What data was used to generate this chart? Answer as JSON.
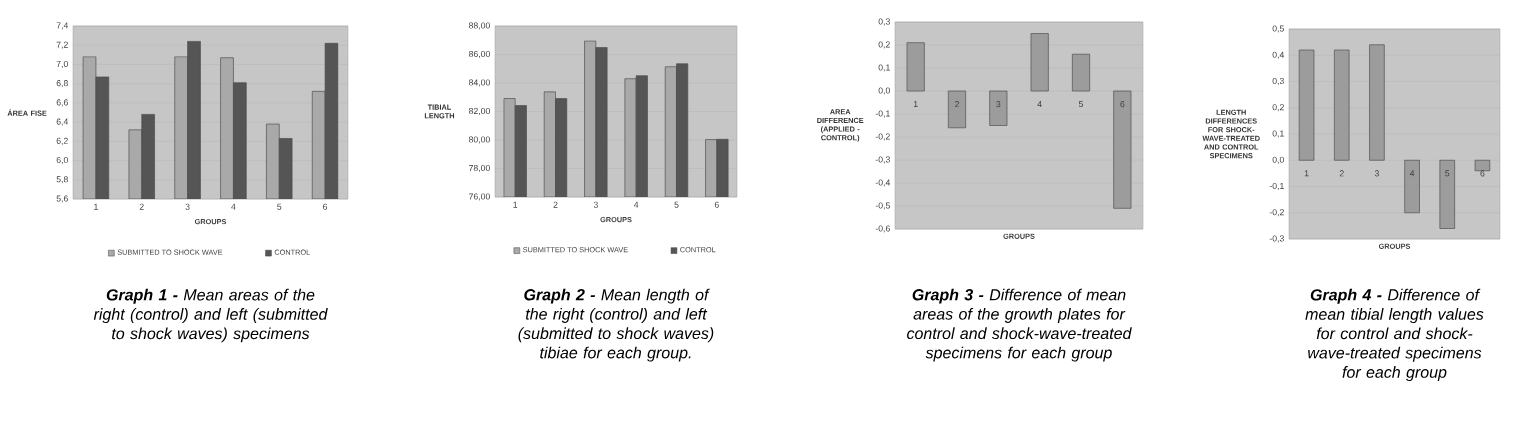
{
  "chart_data": [
    {
      "type": "bar",
      "title": "**Graph 1 -** Mean areas of the right (control) and left (submitted to shock waves) specimens",
      "xlabel": "GROUPS",
      "ylabel": "ÁREA FISE",
      "categories": [
        "1",
        "2",
        "3",
        "4",
        "5",
        "6"
      ],
      "series": [
        {
          "name": "SUBMITTED TO SHOCK WAVE",
          "color": "#a9a9a9",
          "values": [
            7.08,
            6.32,
            7.08,
            7.07,
            6.38,
            6.72
          ]
        },
        {
          "name": "CONTROL",
          "color": "#555555",
          "values": [
            6.87,
            6.48,
            7.24,
            6.81,
            6.23,
            7.22
          ]
        }
      ],
      "ylim": [
        5.6,
        7.4
      ],
      "yticks": [
        {
          "value": 5.6,
          "label": "5,6"
        },
        {
          "value": 5.8,
          "label": "5,8"
        },
        {
          "value": 6.0,
          "label": "6,0"
        },
        {
          "value": 6.2,
          "label": "6,2"
        },
        {
          "value": 6.4,
          "label": "6,4"
        },
        {
          "value": 6.6,
          "label": "6,6"
        },
        {
          "value": 6.8,
          "label": "6,8"
        },
        {
          "value": 7.0,
          "label": "7,0"
        },
        {
          "value": 7.2,
          "label": "7,2"
        },
        {
          "value": 7.4,
          "label": "7,4"
        }
      ],
      "grid": "y",
      "legend": "bottom"
    },
    {
      "type": "bar",
      "title": "**Graph 2 -** Mean length of the right (control) and left (submitted to shock waves) tibiae for each group.",
      "xlabel": "GROUPS",
      "ylabel": "TIBIAL LENGTH",
      "categories": [
        "1",
        "2",
        "3",
        "4",
        "5",
        "6"
      ],
      "series": [
        {
          "name": "SUBMITTED TO SHOCK WAVE",
          "color": "#a9a9a9",
          "values": [
            82.91,
            83.38,
            86.95,
            84.3,
            85.14,
            80.03
          ]
        },
        {
          "name": "CONTROL",
          "color": "#555555",
          "values": [
            82.42,
            82.91,
            86.5,
            84.51,
            85.35,
            80.05
          ]
        }
      ],
      "ylim": [
        76,
        88
      ],
      "yticks": [
        {
          "value": 76,
          "label": "76,00"
        },
        {
          "value": 78,
          "label": "78,00"
        },
        {
          "value": 80,
          "label": "80,00"
        },
        {
          "value": 82,
          "label": "82,00"
        },
        {
          "value": 84,
          "label": "84,00"
        },
        {
          "value": 86,
          "label": "86,00"
        },
        {
          "value": 88,
          "label": "88,00"
        }
      ],
      "grid": "y",
      "legend": "bottom"
    },
    {
      "type": "bar",
      "title": "**Graph 3 -** Difference of mean areas of the growth plates for control and shock-wave-treated specimens for each group",
      "xlabel": "GROUPS",
      "ylabel": "AREA DIFFERENCE (APPLIED - CONTROL)",
      "categories": [
        "1",
        "2",
        "3",
        "4",
        "5",
        "6"
      ],
      "color": "#9c9c9c",
      "values": [
        0.21,
        -0.16,
        -0.15,
        0.25,
        0.16,
        -0.51
      ],
      "ylim": [
        -0.6,
        0.3
      ],
      "yticks": [
        {
          "value": -0.6,
          "label": "-0,6"
        },
        {
          "value": -0.5,
          "label": "-0,5"
        },
        {
          "value": -0.4,
          "label": "-0,4"
        },
        {
          "value": -0.3,
          "label": "-0,3"
        },
        {
          "value": -0.2,
          "label": "-0,2"
        },
        {
          "value": -0.1,
          "label": "-0,1"
        },
        {
          "value": 0.0,
          "label": "0,0"
        },
        {
          "value": 0.1,
          "label": "0,1"
        },
        {
          "value": 0.2,
          "label": "0,2"
        },
        {
          "value": 0.3,
          "label": "0,3"
        }
      ],
      "grid": "y"
    },
    {
      "type": "bar",
      "title": "**Graph 4 -** Difference of mean tibial length values for control and shock-wave-treated specimens for each group",
      "xlabel": "GROUPS",
      "ylabel": "LENGTH DIFFERENCES FOR SHOCK-WAVE-TREATED AND CONTROL SPECIMENS",
      "categories": [
        "1",
        "2",
        "3",
        "4",
        "5",
        "6"
      ],
      "color": "#9c9c9c",
      "values": [
        0.42,
        0.42,
        0.44,
        -0.2,
        -0.26,
        -0.04
      ],
      "ylim": [
        -0.3,
        0.5
      ],
      "yticks": [
        {
          "value": -0.3,
          "label": "-0,3"
        },
        {
          "value": -0.2,
          "label": "-0,2"
        },
        {
          "value": -0.1,
          "label": "-0,1"
        },
        {
          "value": 0.0,
          "label": "0,0"
        },
        {
          "value": 0.1,
          "label": "0,1"
        },
        {
          "value": 0.2,
          "label": "0,2"
        },
        {
          "value": 0.3,
          "label": "0,3"
        },
        {
          "value": 0.4,
          "label": "0,4"
        },
        {
          "value": 0.5,
          "label": "0,5"
        }
      ],
      "grid": "y"
    }
  ]
}
